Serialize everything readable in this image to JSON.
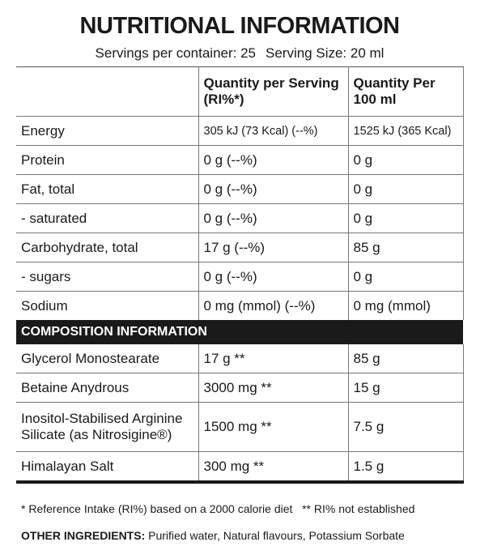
{
  "header": {
    "title": "NUTRITIONAL INFORMATION",
    "servings_per_container": "Servings per container: 25",
    "serving_size": "Serving Size: 20 ml"
  },
  "table": {
    "headers": [
      "",
      "Quantity per Serving (RI%*)",
      "Quantity Per 100 ml"
    ],
    "rows": [
      [
        "Energy",
        "305 kJ (73 Kcal) (--%)",
        "1525 kJ (365 Kcal)"
      ],
      [
        "Protein",
        "0 g (--%)",
        "0 g"
      ],
      [
        "Fat, total",
        "0 g (--%)",
        "0 g"
      ],
      [
        "- saturated",
        "0 g (--%)",
        "0 g"
      ],
      [
        "Carbohydrate, total",
        "17 g (--%)",
        "85 g"
      ],
      [
        "- sugars",
        "0 g (--%)",
        "0 g"
      ],
      [
        "Sodium",
        "0 mg (mmol) (--%)",
        "0 mg (mmol)"
      ]
    ]
  },
  "composition": {
    "title": "COMPOSITION INFORMATION",
    "rows": [
      [
        "Glycerol Monostearate",
        "17 g **",
        "85 g"
      ],
      [
        "Betaine Anydrous",
        "3000 mg **",
        "15 g"
      ],
      [
        "Inositol-Stabilised Arginine Silicate (as Nitrosigine®)",
        "1500 mg **",
        "7.5 g"
      ],
      [
        "Himalayan Salt",
        "300 mg **",
        "1.5 g"
      ]
    ]
  },
  "footnote": "* Reference Intake (RI%) based on a 2000 calorie diet   ** RI% not established",
  "other_ingredients": {
    "label": "OTHER INGREDIENTS:",
    "text": "Purified water, Natural flavours, Potassium Sorbate"
  }
}
